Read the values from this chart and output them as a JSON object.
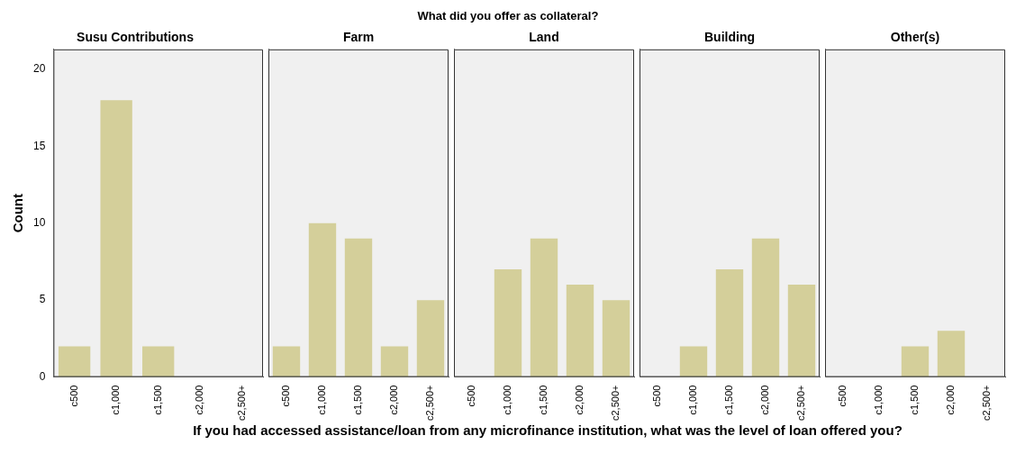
{
  "chart_data": [
    {
      "type": "bar",
      "title": "Susu Contributions",
      "ylabel": "Count",
      "annotations": [
        "What did you offer as collateral?",
        "If you had accessed assistance/loan from any microfinance institution, what was the level of loan offered you?"
      ],
      "categories": [
        "c500",
        "c1,000",
        "c1,500",
        "c2,000",
        "c2,500+"
      ],
      "values": [
        2,
        18,
        2,
        null,
        null
      ],
      "color": "#d4cf9a",
      "ylim": [
        0,
        21.3
      ],
      "yticks": [
        0,
        5,
        10,
        15,
        20
      ],
      "grid": false,
      "legend": false
    },
    {
      "type": "bar",
      "title": "Farm",
      "categories": [
        "c500",
        "c1,000",
        "c1,500",
        "c2,000",
        "c2,500+"
      ],
      "values": [
        2,
        10,
        9,
        2,
        5
      ],
      "color": "#d4cf9a",
      "ylim": [
        0,
        21.3
      ],
      "yticks": [
        0,
        5,
        10,
        15,
        20
      ],
      "grid": false,
      "legend": false,
      "tick_labels": "x"
    },
    {
      "type": "bar",
      "title": "Land",
      "categories": [
        "c500",
        "c1,000",
        "c1,500",
        "c2,000",
        "c2,500+"
      ],
      "values": [
        null,
        7,
        9,
        6,
        5
      ],
      "color": "#d4cf9a",
      "ylim": [
        0,
        21.3
      ],
      "yticks": [
        0,
        5,
        10,
        15,
        20
      ],
      "grid": false,
      "legend": false,
      "tick_labels": "x"
    },
    {
      "type": "bar",
      "title": "Building",
      "categories": [
        "c500",
        "c1,000",
        "c1,500",
        "c2,000",
        "c2,500+"
      ],
      "values": [
        null,
        2,
        7,
        9,
        6
      ],
      "color": "#d4cf9a",
      "ylim": [
        0,
        21.3
      ],
      "yticks": [
        0,
        5,
        10,
        15,
        20
      ],
      "grid": false,
      "legend": false,
      "tick_labels": "x"
    },
    {
      "type": "bar",
      "title": "Other(s)",
      "categories": [
        "c500",
        "c1,000",
        "c1,500",
        "c2,000",
        "c2,500+"
      ],
      "values": [
        null,
        null,
        2,
        3,
        null
      ],
      "color": "#d4cf9a",
      "ylim": [
        0,
        21.3
      ],
      "yticks": [
        0,
        5,
        10,
        15,
        20
      ],
      "grid": false,
      "legend": false,
      "tick_labels": "x"
    }
  ]
}
